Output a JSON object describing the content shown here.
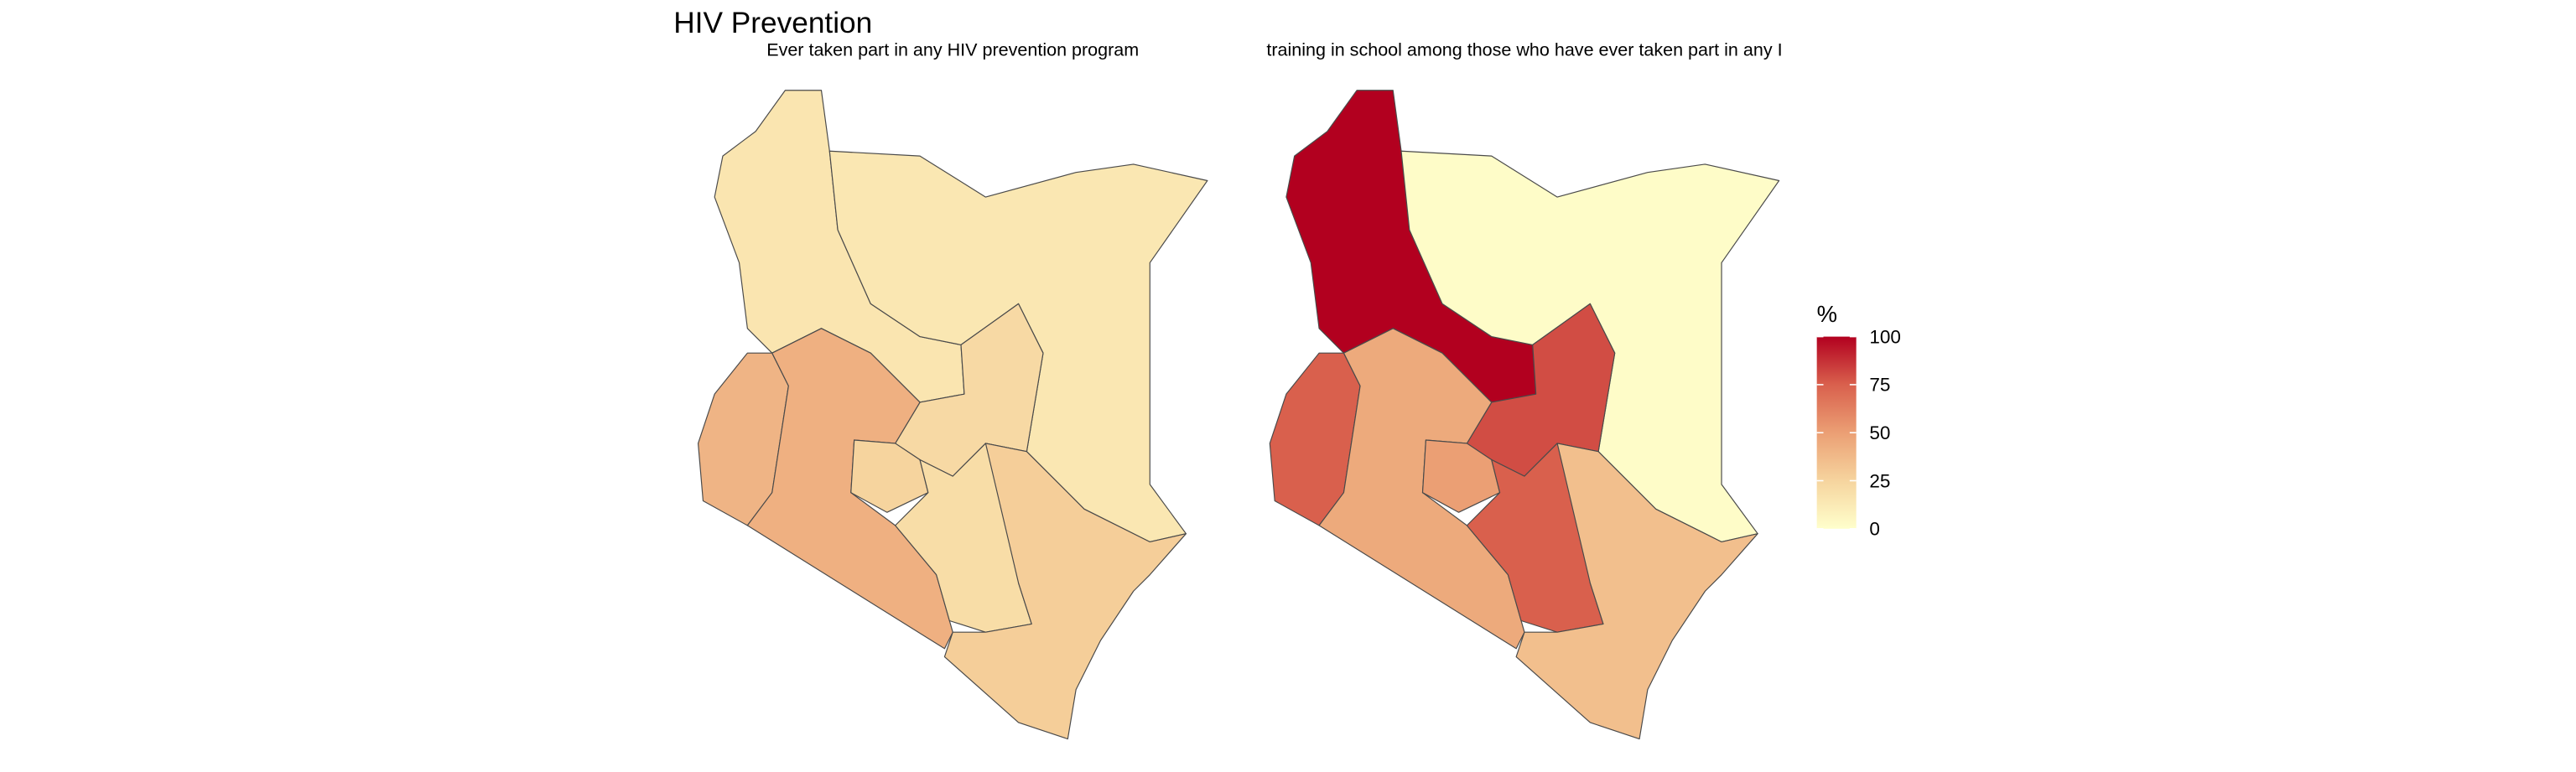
{
  "title": "HIV Prevention",
  "panels": [
    {
      "subtitle": "Ever taken part in any HIV prevention program",
      "values": [
        15,
        14,
        22,
        40,
        42,
        25,
        20,
        28
      ]
    },
    {
      "subtitle": "training in school among those who have ever taken part in any I",
      "values": [
        100,
        2,
        80,
        75,
        45,
        50,
        75,
        35
      ]
    }
  ],
  "legend": {
    "title": "%",
    "lim": [
      0,
      100
    ],
    "ticks": [
      0,
      25,
      50,
      75,
      100
    ],
    "colors": [
      "#ffffcc",
      "#f6d49e",
      "#eb9f74",
      "#d9604d",
      "#b2001f"
    ]
  }
}
